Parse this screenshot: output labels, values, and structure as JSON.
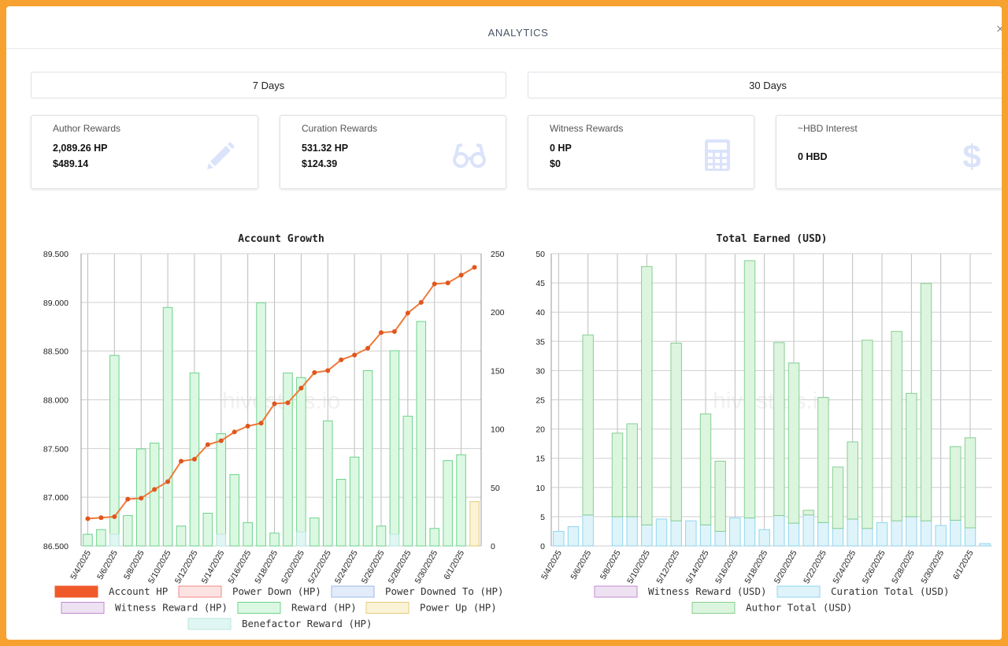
{
  "header": {
    "title": "ANALYTICS"
  },
  "ranges": {
    "seven": "7 Days",
    "thirty": "30 Days"
  },
  "cards": [
    {
      "label": "Author Rewards",
      "line1": "2,089.26 HP",
      "line2": "$489.14",
      "icon": "pencil-icon"
    },
    {
      "label": "Curation Rewards",
      "line1": "531.32 HP",
      "line2": "$124.39",
      "icon": "glasses-icon"
    },
    {
      "label": "Witness Rewards",
      "line1": "0 HP",
      "line2": "$0",
      "icon": "calculator-icon"
    },
    {
      "label": "~HBD Interest",
      "line1": "0 HBD",
      "line2": "",
      "icon": "dollar-icon"
    }
  ],
  "watermark": "hivestats.io",
  "colors": {
    "accent_orange": "#ef7a3a",
    "reward_green": "#6dd38a",
    "curation_blue": "#8fd6ee",
    "border": "#f7a230"
  },
  "chart_data": [
    {
      "type": "bar",
      "title": "Account Growth",
      "x": [
        "5/4/2025",
        "5/5/2025",
        "5/6/2025",
        "5/7/2025",
        "5/8/2025",
        "5/9/2025",
        "5/10/2025",
        "5/11/2025",
        "5/12/2025",
        "5/13/2025",
        "5/14/2025",
        "5/15/2025",
        "5/16/2025",
        "5/17/2025",
        "5/18/2025",
        "5/19/2025",
        "5/20/2025",
        "5/21/2025",
        "5/22/2025",
        "5/23/2025",
        "5/24/2025",
        "5/25/2025",
        "5/26/2025",
        "5/27/2025",
        "5/28/2025",
        "5/29/2025",
        "5/30/2025",
        "5/31/2025",
        "6/1/2025",
        "6/2/2025"
      ],
      "tick_labels": [
        "5/4/2025",
        "5/6/2025",
        "5/8/2025",
        "5/10/2025",
        "5/12/2025",
        "5/14/2025",
        "5/16/2025",
        "5/18/2025",
        "5/20/2025",
        "5/22/2025",
        "5/24/2025",
        "5/26/2025",
        "5/28/2025",
        "5/30/2025",
        "6/1/2025"
      ],
      "y_left_ticks": [
        "86.500",
        "87.000",
        "87.500",
        "88.000",
        "88.500",
        "89.000",
        "89.500"
      ],
      "y_left_range": [
        86.5,
        89.5
      ],
      "y_right_ticks": [
        "0",
        "50",
        "100",
        "150",
        "200",
        "250"
      ],
      "y_right_range": [
        0,
        250
      ],
      "series": [
        {
          "name": "Account HP",
          "axis": "left",
          "kind": "line",
          "values": [
            86.78,
            86.79,
            86.8,
            86.98,
            86.99,
            87.08,
            87.16,
            87.37,
            87.39,
            87.54,
            87.58,
            87.67,
            87.73,
            87.76,
            87.96,
            87.97,
            88.12,
            88.28,
            88.3,
            88.41,
            88.46,
            88.53,
            88.69,
            88.7,
            88.89,
            89.0,
            89.19,
            89.2,
            89.28,
            89.36
          ]
        },
        {
          "name": "Power Down (HP)",
          "axis": "right",
          "kind": "bar",
          "values": [
            0,
            0,
            0,
            0,
            0,
            0,
            0,
            0,
            0,
            0,
            0,
            0,
            0,
            0,
            0,
            0,
            0,
            0,
            0,
            0,
            0,
            0,
            0,
            0,
            0,
            0,
            0,
            0,
            0,
            0
          ]
        },
        {
          "name": "Power Downed To (HP)",
          "axis": "right",
          "kind": "bar",
          "values": [
            0,
            0,
            0,
            0,
            0,
            0,
            0,
            0,
            0,
            0,
            0,
            0,
            0,
            0,
            0,
            0,
            0,
            0,
            0,
            0,
            0,
            0,
            0,
            0,
            0,
            0,
            0,
            0,
            0,
            0
          ]
        },
        {
          "name": "Witness Reward (HP)",
          "axis": "right",
          "kind": "bar",
          "values": [
            0,
            0,
            0,
            0,
            0,
            0,
            0,
            0,
            0,
            0,
            0,
            0,
            0,
            0,
            0,
            0,
            0,
            0,
            0,
            0,
            0,
            0,
            0,
            0,
            0,
            0,
            0,
            0,
            0,
            0
          ]
        },
        {
          "name": "Reward (HP)",
          "axis": "right",
          "kind": "bar",
          "values": [
            10,
            14,
            163,
            26,
            83,
            88,
            204,
            17,
            148,
            28,
            96,
            61,
            20,
            208,
            11,
            148,
            144,
            24,
            107,
            57,
            76,
            150,
            17,
            167,
            111,
            192,
            15,
            73,
            78,
            1
          ]
        },
        {
          "name": "Power Up (HP)",
          "axis": "right",
          "kind": "bar",
          "values": [
            0,
            0,
            0,
            0,
            0,
            0,
            0,
            0,
            0,
            0,
            0,
            0,
            0,
            0,
            0,
            0,
            0,
            0,
            0,
            0,
            0,
            0,
            0,
            0,
            0,
            0,
            0,
            0,
            0,
            38
          ]
        },
        {
          "name": "Benefactor Reward (HP)",
          "axis": "right",
          "kind": "bar",
          "values": [
            0,
            0,
            10,
            0,
            0,
            0,
            0,
            0,
            0,
            0,
            10,
            0,
            0,
            0,
            0,
            0,
            12,
            0,
            0,
            0,
            0,
            0,
            0,
            10,
            0,
            0,
            0,
            0,
            0,
            0
          ]
        }
      ],
      "legend_position": "bottom",
      "grid": true
    },
    {
      "type": "bar",
      "title": "Total Earned (USD)",
      "x": [
        "5/4/2025",
        "5/5/2025",
        "5/6/2025",
        "5/7/2025",
        "5/8/2025",
        "5/9/2025",
        "5/10/2025",
        "5/11/2025",
        "5/12/2025",
        "5/13/2025",
        "5/14/2025",
        "5/15/2025",
        "5/16/2025",
        "5/17/2025",
        "5/18/2025",
        "5/19/2025",
        "5/20/2025",
        "5/21/2025",
        "5/22/2025",
        "5/23/2025",
        "5/24/2025",
        "5/25/2025",
        "5/26/2025",
        "5/27/2025",
        "5/28/2025",
        "5/29/2025",
        "5/30/2025",
        "5/31/2025",
        "6/1/2025",
        "6/2/2025"
      ],
      "tick_labels": [
        "5/4/2025",
        "5/6/2025",
        "5/8/2025",
        "5/10/2025",
        "5/12/2025",
        "5/14/2025",
        "5/16/2025",
        "5/18/2025",
        "5/20/2025",
        "5/22/2025",
        "5/24/2025",
        "5/26/2025",
        "5/28/2025",
        "5/30/2025",
        "6/1/2025"
      ],
      "y_ticks": [
        "0",
        "5",
        "10",
        "15",
        "20",
        "25",
        "30",
        "35",
        "40",
        "45",
        "50"
      ],
      "ylim": [
        0,
        50
      ],
      "stacked": true,
      "series": [
        {
          "name": "Witness Reward (USD)",
          "values": [
            0,
            0,
            0,
            0,
            0,
            0,
            0,
            0,
            0,
            0,
            0,
            0,
            0,
            0,
            0,
            0,
            0,
            0,
            0,
            0,
            0,
            0,
            0,
            0,
            0,
            0,
            0,
            0,
            0,
            0
          ]
        },
        {
          "name": "Curation Total (USD)",
          "values": [
            2.5,
            3.3,
            5.3,
            0,
            5.0,
            5.0,
            3.6,
            4.6,
            4.3,
            4.3,
            3.6,
            2.5,
            4.8,
            4.8,
            2.8,
            5.2,
            3.9,
            5.3,
            4.0,
            3.0,
            4.6,
            3.0,
            4.0,
            4.3,
            5.0,
            4.3,
            3.5,
            4.4,
            3.1,
            0.4
          ]
        },
        {
          "name": "Author Total (USD)",
          "values": [
            0,
            0,
            30.8,
            0,
            14.3,
            15.9,
            44.2,
            0,
            30.4,
            0,
            19.0,
            12.0,
            0,
            44.0,
            0,
            29.6,
            27.4,
            0.8,
            21.4,
            10.5,
            13.2,
            32.2,
            0,
            32.4,
            21.1,
            40.6,
            0,
            12.6,
            15.4,
            0
          ]
        }
      ],
      "legend_position": "bottom",
      "grid": true
    }
  ]
}
